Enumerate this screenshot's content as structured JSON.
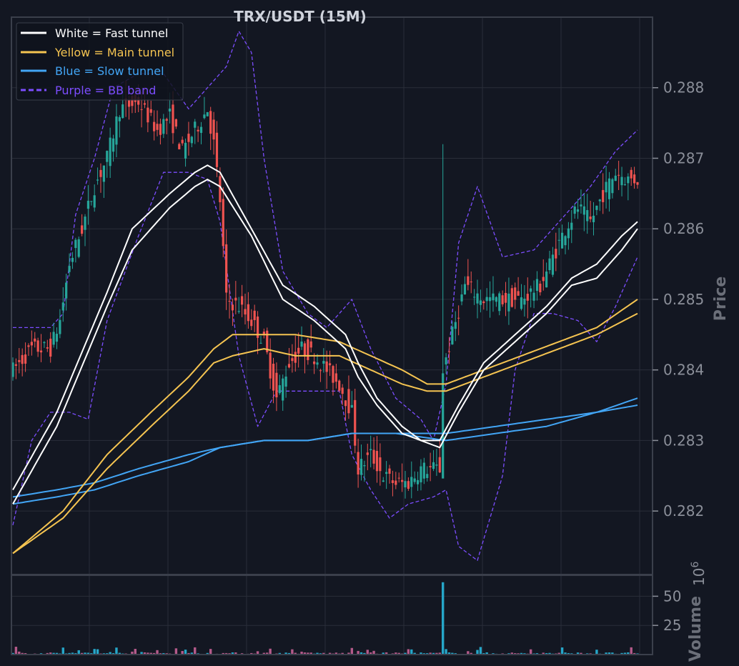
{
  "chart_data": {
    "type": "candlestick",
    "title": "TRX/USDT (15M)",
    "price_panel": {
      "ylabel": "Price",
      "ylim": [
        0.2811,
        0.289
      ],
      "yticks": [
        0.282,
        0.283,
        0.284,
        0.285,
        0.286,
        0.287,
        0.288
      ],
      "ytick_labels": [
        "0.282",
        "0.283",
        "0.284",
        "0.285",
        "0.286",
        "0.287",
        "0.288"
      ],
      "x_count": 200,
      "grid": true
    },
    "volume_panel": {
      "ylabel": "Volume",
      "exponent_label": "10^6",
      "exponent_base": "10",
      "exponent_power": "6",
      "ylim": [
        0,
        68
      ],
      "yticks": [
        25,
        50
      ],
      "ytick_labels": [
        "25",
        "50"
      ],
      "spike": {
        "index": 137,
        "value": 62
      }
    },
    "legend": {
      "placement": "top-left",
      "entries": [
        {
          "label": "White = Fast tunnel",
          "color": "#ffffff",
          "style": "solid"
        },
        {
          "label": "Yellow = Main tunnel",
          "color": "#f5c451",
          "style": "solid"
        },
        {
          "label": "Blue = Slow tunnel",
          "color": "#42a5f5",
          "style": "solid"
        },
        {
          "label": "Purple = BB band",
          "color": "#7c4dff",
          "style": "dashed"
        }
      ]
    },
    "close_anchors": [
      [
        0,
        0.284
      ],
      [
        6,
        0.2843
      ],
      [
        12,
        0.2843
      ],
      [
        15,
        0.2847
      ],
      [
        18,
        0.2855
      ],
      [
        22,
        0.286
      ],
      [
        26,
        0.2866
      ],
      [
        30,
        0.287
      ],
      [
        34,
        0.2877
      ],
      [
        40,
        0.2878
      ],
      [
        46,
        0.2874
      ],
      [
        50,
        0.2876
      ],
      [
        54,
        0.2871
      ],
      [
        58,
        0.2874
      ],
      [
        62,
        0.2877
      ],
      [
        64,
        0.2872
      ],
      [
        66,
        0.2864
      ],
      [
        68,
        0.285
      ],
      [
        72,
        0.2849
      ],
      [
        76,
        0.2847
      ],
      [
        80,
        0.2844
      ],
      [
        84,
        0.2836
      ],
      [
        88,
        0.2841
      ],
      [
        92,
        0.2843
      ],
      [
        96,
        0.2842
      ],
      [
        100,
        0.284
      ],
      [
        104,
        0.2838
      ],
      [
        108,
        0.2834
      ],
      [
        110,
        0.2826
      ],
      [
        114,
        0.2828
      ],
      [
        118,
        0.2825
      ],
      [
        122,
        0.2824
      ],
      [
        126,
        0.2824
      ],
      [
        130,
        0.2826
      ],
      [
        134,
        0.2826
      ],
      [
        136,
        0.2826
      ],
      [
        137,
        0.284
      ],
      [
        140,
        0.2845
      ],
      [
        144,
        0.2852
      ],
      [
        150,
        0.285
      ],
      [
        156,
        0.285
      ],
      [
        162,
        0.285
      ],
      [
        168,
        0.2852
      ],
      [
        172,
        0.2856
      ],
      [
        176,
        0.286
      ],
      [
        180,
        0.2863
      ],
      [
        184,
        0.2861
      ],
      [
        188,
        0.2865
      ],
      [
        192,
        0.2868
      ],
      [
        196,
        0.2867
      ],
      [
        199,
        0.2867
      ]
    ],
    "fast_tunnel": {
      "upper": [
        [
          0,
          0.2823
        ],
        [
          14,
          0.2834
        ],
        [
          30,
          0.2851
        ],
        [
          38,
          0.286
        ],
        [
          50,
          0.2865
        ],
        [
          58,
          0.2868
        ],
        [
          62,
          0.2869
        ],
        [
          66,
          0.2868
        ],
        [
          76,
          0.286
        ],
        [
          86,
          0.2852
        ],
        [
          96,
          0.2849
        ],
        [
          106,
          0.2845
        ],
        [
          110,
          0.2841
        ],
        [
          116,
          0.2836
        ],
        [
          124,
          0.2832
        ],
        [
          130,
          0.283
        ],
        [
          136,
          0.283
        ],
        [
          142,
          0.2835
        ],
        [
          150,
          0.2841
        ],
        [
          160,
          0.2845
        ],
        [
          170,
          0.2849
        ],
        [
          178,
          0.2853
        ],
        [
          186,
          0.2855
        ],
        [
          194,
          0.2859
        ],
        [
          199,
          0.2861
        ]
      ],
      "lower": [
        [
          0,
          0.2821
        ],
        [
          14,
          0.2832
        ],
        [
          30,
          0.2849
        ],
        [
          38,
          0.2857
        ],
        [
          50,
          0.2863
        ],
        [
          58,
          0.2866
        ],
        [
          62,
          0.2867
        ],
        [
          66,
          0.2866
        ],
        [
          76,
          0.2859
        ],
        [
          86,
          0.285
        ],
        [
          96,
          0.2847
        ],
        [
          106,
          0.2843
        ],
        [
          110,
          0.2839
        ],
        [
          116,
          0.2835
        ],
        [
          124,
          0.2831
        ],
        [
          130,
          0.283
        ],
        [
          136,
          0.2829
        ],
        [
          142,
          0.2834
        ],
        [
          150,
          0.284
        ],
        [
          160,
          0.2844
        ],
        [
          170,
          0.2848
        ],
        [
          178,
          0.2852
        ],
        [
          186,
          0.2853
        ],
        [
          194,
          0.2857
        ],
        [
          199,
          0.286
        ]
      ]
    },
    "main_tunnel": {
      "upper": [
        [
          0,
          0.2814
        ],
        [
          16,
          0.282
        ],
        [
          30,
          0.2828
        ],
        [
          44,
          0.2834
        ],
        [
          56,
          0.2839
        ],
        [
          64,
          0.2843
        ],
        [
          70,
          0.2845
        ],
        [
          80,
          0.2845
        ],
        [
          90,
          0.2845
        ],
        [
          104,
          0.2844
        ],
        [
          114,
          0.2842
        ],
        [
          124,
          0.284
        ],
        [
          132,
          0.2838
        ],
        [
          138,
          0.2838
        ],
        [
          150,
          0.284
        ],
        [
          162,
          0.2842
        ],
        [
          174,
          0.2844
        ],
        [
          186,
          0.2846
        ],
        [
          199,
          0.285
        ]
      ],
      "lower": [
        [
          0,
          0.2814
        ],
        [
          16,
          0.2819
        ],
        [
          30,
          0.2826
        ],
        [
          44,
          0.2832
        ],
        [
          56,
          0.2837
        ],
        [
          64,
          0.2841
        ],
        [
          70,
          0.2842
        ],
        [
          80,
          0.2843
        ],
        [
          90,
          0.2842
        ],
        [
          104,
          0.2842
        ],
        [
          114,
          0.284
        ],
        [
          124,
          0.2838
        ],
        [
          132,
          0.2837
        ],
        [
          138,
          0.2837
        ],
        [
          150,
          0.2839
        ],
        [
          162,
          0.2841
        ],
        [
          174,
          0.2843
        ],
        [
          186,
          0.2845
        ],
        [
          199,
          0.2848
        ]
      ]
    },
    "slow_tunnel": {
      "upper": [
        [
          0,
          0.2822
        ],
        [
          14,
          0.2823
        ],
        [
          26,
          0.2824
        ],
        [
          40,
          0.2826
        ],
        [
          56,
          0.2828
        ],
        [
          66,
          0.2829
        ],
        [
          80,
          0.283
        ],
        [
          94,
          0.283
        ],
        [
          108,
          0.2831
        ],
        [
          122,
          0.2831
        ],
        [
          138,
          0.2831
        ],
        [
          154,
          0.2832
        ],
        [
          170,
          0.2833
        ],
        [
          186,
          0.2834
        ],
        [
          199,
          0.2836
        ]
      ],
      "lower": [
        [
          0,
          0.2821
        ],
        [
          14,
          0.2822
        ],
        [
          26,
          0.2823
        ],
        [
          40,
          0.2825
        ],
        [
          56,
          0.2827
        ],
        [
          66,
          0.2829
        ],
        [
          80,
          0.283
        ],
        [
          94,
          0.283
        ],
        [
          108,
          0.2831
        ],
        [
          122,
          0.2831
        ],
        [
          138,
          0.283
        ],
        [
          154,
          0.2831
        ],
        [
          170,
          0.2832
        ],
        [
          186,
          0.2834
        ],
        [
          199,
          0.2835
        ]
      ]
    },
    "bb_band": {
      "upper": [
        [
          0,
          0.2846
        ],
        [
          6,
          0.2846
        ],
        [
          12,
          0.2846
        ],
        [
          16,
          0.2848
        ],
        [
          20,
          0.2862
        ],
        [
          26,
          0.287
        ],
        [
          32,
          0.288
        ],
        [
          40,
          0.2882
        ],
        [
          48,
          0.2882
        ],
        [
          56,
          0.2877
        ],
        [
          62,
          0.288
        ],
        [
          68,
          0.2883
        ],
        [
          72,
          0.2888
        ],
        [
          76,
          0.2885
        ],
        [
          80,
          0.287
        ],
        [
          86,
          0.2854
        ],
        [
          94,
          0.2848
        ],
        [
          100,
          0.2846
        ],
        [
          108,
          0.285
        ],
        [
          114,
          0.2843
        ],
        [
          122,
          0.2836
        ],
        [
          130,
          0.2833
        ],
        [
          134,
          0.283
        ],
        [
          138,
          0.2838
        ],
        [
          142,
          0.2858
        ],
        [
          148,
          0.2866
        ],
        [
          156,
          0.2856
        ],
        [
          166,
          0.2857
        ],
        [
          176,
          0.2862
        ],
        [
          184,
          0.2866
        ],
        [
          192,
          0.2871
        ],
        [
          199,
          0.2874
        ]
      ],
      "lower": [
        [
          0,
          0.2818
        ],
        [
          6,
          0.283
        ],
        [
          12,
          0.2834
        ],
        [
          18,
          0.2834
        ],
        [
          24,
          0.2833
        ],
        [
          30,
          0.2847
        ],
        [
          40,
          0.2859
        ],
        [
          48,
          0.2868
        ],
        [
          56,
          0.2868
        ],
        [
          62,
          0.2867
        ],
        [
          66,
          0.2861
        ],
        [
          72,
          0.2842
        ],
        [
          78,
          0.2832
        ],
        [
          84,
          0.2837
        ],
        [
          94,
          0.2837
        ],
        [
          104,
          0.2837
        ],
        [
          108,
          0.2828
        ],
        [
          114,
          0.2823
        ],
        [
          120,
          0.2819
        ],
        [
          126,
          0.2821
        ],
        [
          134,
          0.2822
        ],
        [
          138,
          0.2823
        ],
        [
          142,
          0.2815
        ],
        [
          148,
          0.2813
        ],
        [
          156,
          0.2825
        ],
        [
          160,
          0.284
        ],
        [
          166,
          0.2848
        ],
        [
          172,
          0.2848
        ],
        [
          180,
          0.2847
        ],
        [
          186,
          0.2844
        ],
        [
          192,
          0.2849
        ],
        [
          199,
          0.2856
        ]
      ]
    }
  },
  "colors": {
    "background": "#131722",
    "grid": "#2a2e39",
    "frame": "#3a3f4b",
    "bull": "#26a69a",
    "bear": "#ef5350",
    "volume": "#26a6c8"
  }
}
